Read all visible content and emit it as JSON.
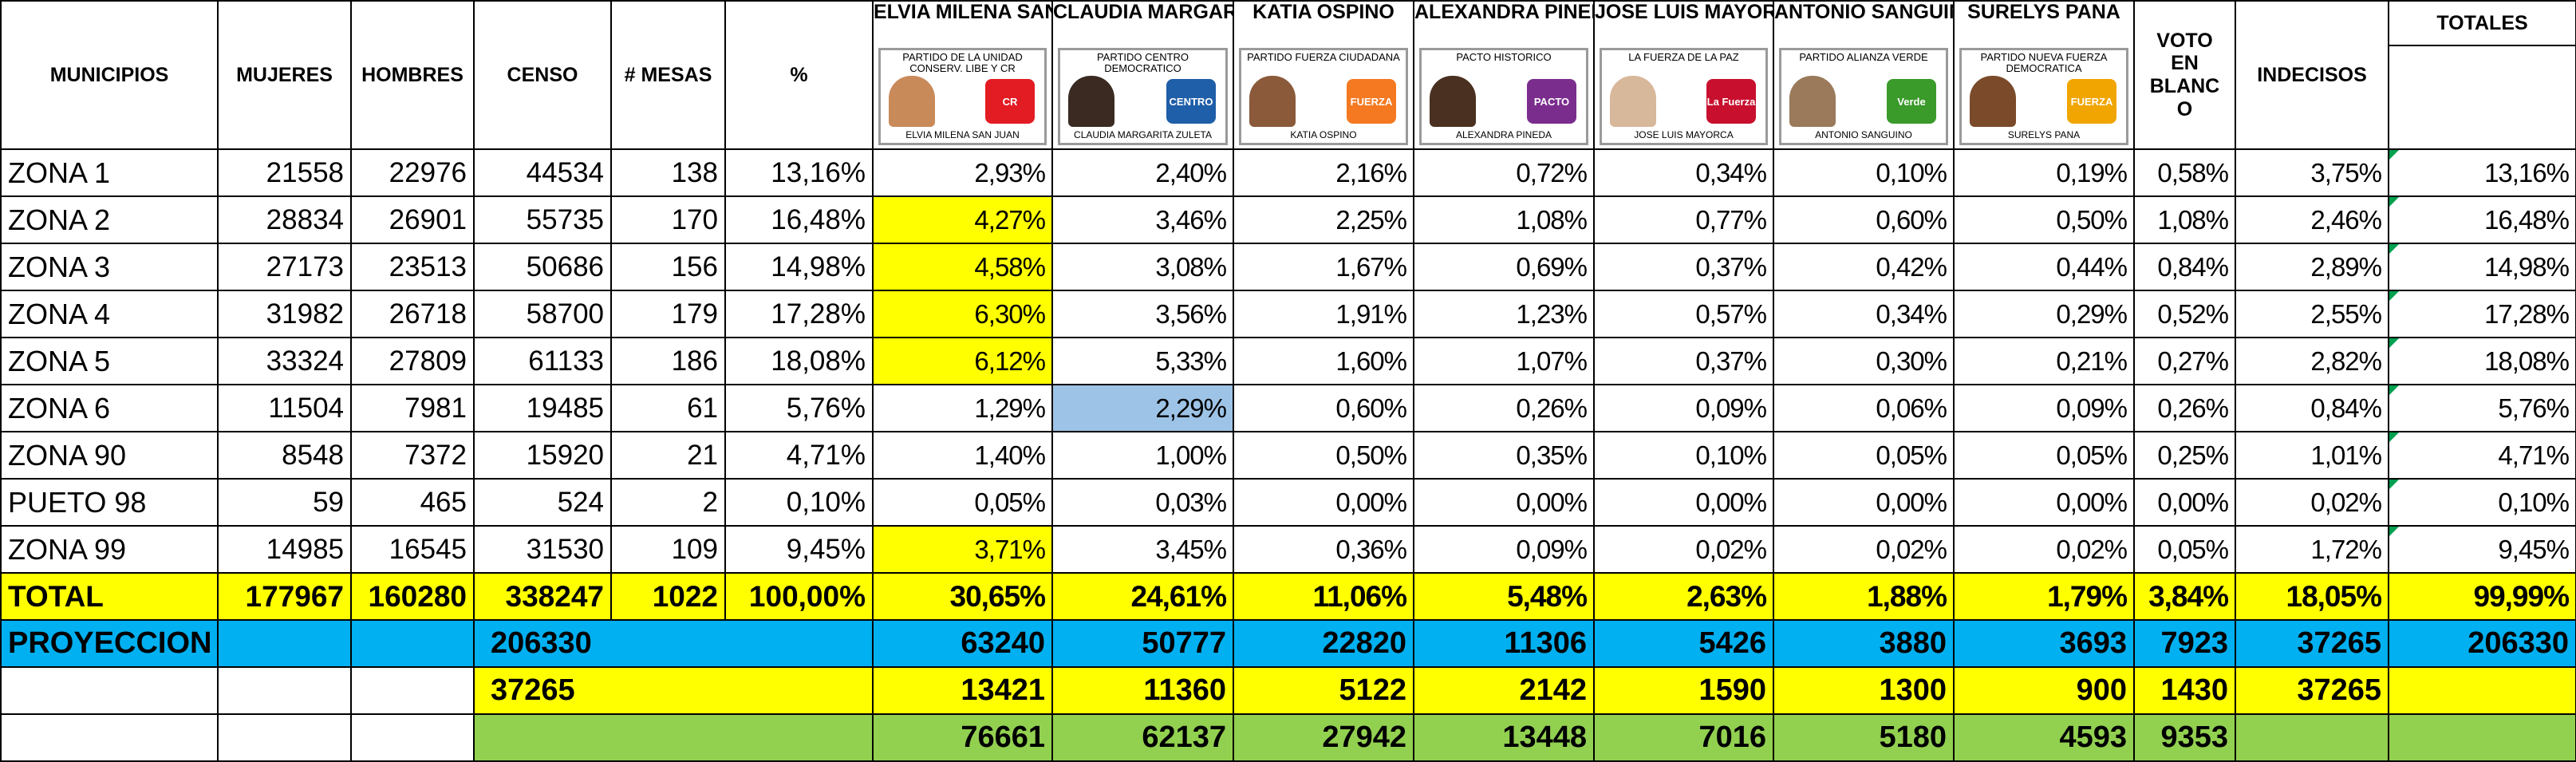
{
  "headers": {
    "municipios": "MUNICIPIOS",
    "mujeres": "MUJERES",
    "hombres": "HOMBRES",
    "censo": "CENSO",
    "mesas": "# MESAS",
    "pct": "%",
    "voto_blanco": "VOTO EN BLANC O",
    "indecisos": "INDECISOS",
    "totales": "TOTALES"
  },
  "candidates": [
    {
      "name": "ELVIA MILENA SAN",
      "party": "PARTIDO DE LA UNIDAD CONSERV. LIBE Y CR",
      "caption": "ELVIA MILENA SAN JUAN",
      "logo_text": "CR",
      "logo_color": "#e31b23",
      "photo_color": "#c98a5a"
    },
    {
      "name": "CLAUDIA MARGARITA",
      "party": "PARTIDO CENTRO DEMOCRATICO",
      "caption": "CLAUDIA MARGARITA ZULETA",
      "logo_text": "CENTRO",
      "logo_color": "#1f5ea8",
      "photo_color": "#3a2a22"
    },
    {
      "name": "KATIA OSPINO",
      "party": "PARTIDO FUERZA CIUDADANA",
      "caption": "KATIA OSPINO",
      "logo_text": "FUERZA",
      "logo_color": "#f47920",
      "photo_color": "#8a5a3a"
    },
    {
      "name": "ALEXANDRA PINEDA",
      "party": "PACTO HISTORICO",
      "caption": "ALEXANDRA PINEDA",
      "logo_text": "PACTO",
      "logo_color": "#7b2d8e",
      "photo_color": "#4a3020"
    },
    {
      "name": "JOSE LUIS MAYORCA",
      "party": "LA FUERZA DE LA PAZ",
      "caption": "JOSE LUIS MAYORCA",
      "logo_text": "La Fuerza",
      "logo_color": "#c8102e",
      "photo_color": "#d8b89a"
    },
    {
      "name": "ANTONIO SANGUINO",
      "party": "PARTIDO ALIANZA VERDE",
      "caption": "ANTONIO SANGUINO",
      "logo_text": "Verde",
      "logo_color": "#3a9a2a",
      "photo_color": "#9a7a5a"
    },
    {
      "name": "SURELYS PANA",
      "party": "PARTIDO NUEVA FUERZA DEMOCRATICA",
      "caption": "SURELYS PANA",
      "logo_text": "FUERZA",
      "logo_color": "#f0a500",
      "photo_color": "#7a4a2a"
    }
  ],
  "rows": [
    {
      "zona": "ZONA 1",
      "mujeres": "21558",
      "hombres": "22976",
      "censo": "44534",
      "mesas": "138",
      "pct": "13,16%",
      "c": [
        "2,93%",
        "2,40%",
        "2,16%",
        "0,72%",
        "0,34%",
        "0,10%",
        "0,19%"
      ],
      "blanco": "0,58%",
      "indecisos": "3,75%",
      "total": "13,16%",
      "hl": [
        "",
        "",
        "",
        "",
        "",
        "",
        ""
      ]
    },
    {
      "zona": "ZONA 2",
      "mujeres": "28834",
      "hombres": "26901",
      "censo": "55735",
      "mesas": "170",
      "pct": "16,48%",
      "c": [
        "4,27%",
        "3,46%",
        "2,25%",
        "1,08%",
        "0,77%",
        "0,60%",
        "0,50%"
      ],
      "blanco": "1,08%",
      "indecisos": "2,46%",
      "total": "16,48%",
      "hl": [
        "yellow",
        "",
        "",
        "",
        "",
        "",
        ""
      ]
    },
    {
      "zona": "ZONA 3",
      "mujeres": "27173",
      "hombres": "23513",
      "censo": "50686",
      "mesas": "156",
      "pct": "14,98%",
      "c": [
        "4,58%",
        "3,08%",
        "1,67%",
        "0,69%",
        "0,37%",
        "0,42%",
        "0,44%"
      ],
      "blanco": "0,84%",
      "indecisos": "2,89%",
      "total": "14,98%",
      "hl": [
        "yellow",
        "",
        "",
        "",
        "",
        "",
        ""
      ]
    },
    {
      "zona": "ZONA 4",
      "mujeres": "31982",
      "hombres": "26718",
      "censo": "58700",
      "mesas": "179",
      "pct": "17,28%",
      "c": [
        "6,30%",
        "3,56%",
        "1,91%",
        "1,23%",
        "0,57%",
        "0,34%",
        "0,29%"
      ],
      "blanco": "0,52%",
      "indecisos": "2,55%",
      "total": "17,28%",
      "hl": [
        "yellow",
        "",
        "",
        "",
        "",
        "",
        ""
      ]
    },
    {
      "zona": "ZONA 5",
      "mujeres": "33324",
      "hombres": "27809",
      "censo": "61133",
      "mesas": "186",
      "pct": "18,08%",
      "c": [
        "6,12%",
        "5,33%",
        "1,60%",
        "1,07%",
        "0,37%",
        "0,30%",
        "0,21%"
      ],
      "blanco": "0,27%",
      "indecisos": "2,82%",
      "total": "18,08%",
      "hl": [
        "yellow",
        "",
        "",
        "",
        "",
        "",
        ""
      ]
    },
    {
      "zona": "ZONA 6",
      "mujeres": "11504",
      "hombres": "7981",
      "censo": "19485",
      "mesas": "61",
      "pct": "5,76%",
      "c": [
        "1,29%",
        "2,29%",
        "0,60%",
        "0,26%",
        "0,09%",
        "0,06%",
        "0,09%"
      ],
      "blanco": "0,26%",
      "indecisos": "0,84%",
      "total": "5,76%",
      "hl": [
        "",
        "lightblue",
        "",
        "",
        "",
        "",
        ""
      ]
    },
    {
      "zona": "ZONA 90",
      "mujeres": "8548",
      "hombres": "7372",
      "censo": "15920",
      "mesas": "21",
      "pct": "4,71%",
      "c": [
        "1,40%",
        "1,00%",
        "0,50%",
        "0,35%",
        "0,10%",
        "0,05%",
        "0,05%"
      ],
      "blanco": "0,25%",
      "indecisos": "1,01%",
      "total": "4,71%",
      "hl": [
        "",
        "",
        "",
        "",
        "",
        "",
        ""
      ]
    },
    {
      "zona": "PUETO 98",
      "mujeres": "59",
      "hombres": "465",
      "censo": "524",
      "mesas": "2",
      "pct": "0,10%",
      "c": [
        "0,05%",
        "0,03%",
        "0,00%",
        "0,00%",
        "0,00%",
        "0,00%",
        "0,00%"
      ],
      "blanco": "0,00%",
      "indecisos": "0,02%",
      "total": "0,10%",
      "hl": [
        "",
        "",
        "",
        "",
        "",
        "",
        ""
      ]
    },
    {
      "zona": "ZONA 99",
      "mujeres": "14985",
      "hombres": "16545",
      "censo": "31530",
      "mesas": "109",
      "pct": "9,45%",
      "c": [
        "3,71%",
        "3,45%",
        "0,36%",
        "0,09%",
        "0,02%",
        "0,02%",
        "0,02%"
      ],
      "blanco": "0,05%",
      "indecisos": "1,72%",
      "total": "9,45%",
      "hl": [
        "yellow",
        "",
        "",
        "",
        "",
        "",
        ""
      ]
    }
  ],
  "total_row": {
    "label": "TOTAL",
    "mujeres": "177967",
    "hombres": "160280",
    "censo": "338247",
    "mesas": "1022",
    "pct": "100,00%",
    "c": [
      "30,65%",
      "24,61%",
      "11,06%",
      "5,48%",
      "2,63%",
      "1,88%",
      "1,79%"
    ],
    "blanco": "3,84%",
    "indecisos": "18,05%",
    "total": "99,99%"
  },
  "proyeccion": {
    "label": "PROYECCION",
    "censo": "206330",
    "c": [
      "63240",
      "50777",
      "22820",
      "11306",
      "5426",
      "3880",
      "3693"
    ],
    "blanco": "7923",
    "indecisos": "37265",
    "total": "206330"
  },
  "undecided_row": {
    "censo": "37265",
    "c": [
      "13421",
      "11360",
      "5122",
      "2142",
      "1590",
      "1300",
      "900"
    ],
    "blanco": "1430",
    "indecisos": "37265"
  },
  "final_row": {
    "c": [
      "76661",
      "62137",
      "27942",
      "13448",
      "7016",
      "5180",
      "4593"
    ],
    "blanco": "9353"
  },
  "colors": {
    "yellow": "#ffff00",
    "blue": "#00b0f0",
    "green": "#92d050",
    "light_blue": "#9dc3e6"
  }
}
